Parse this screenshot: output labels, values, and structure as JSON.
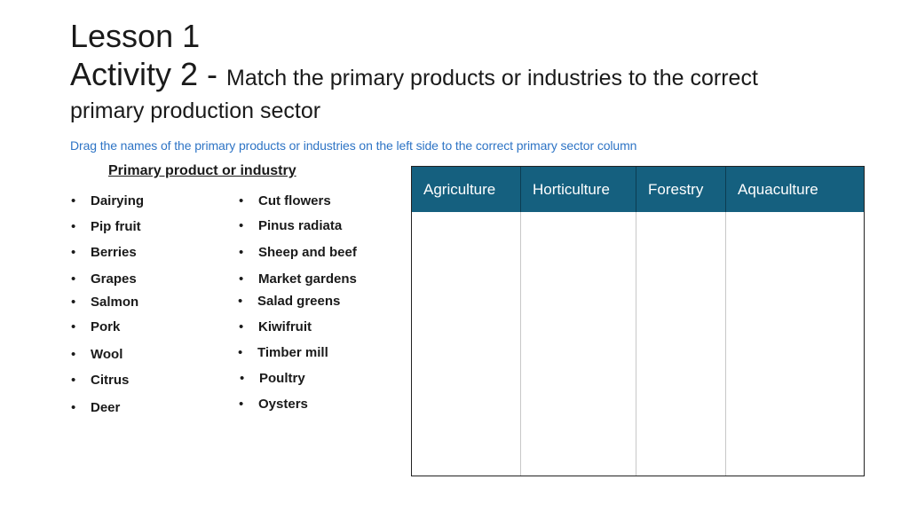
{
  "title": {
    "lesson": "Lesson 1",
    "activity_label": "Activity 2 - ",
    "activity_desc_line1": "Match the primary products or industries to the correct",
    "activity_desc_line2": "primary production sector"
  },
  "instruction": "Drag the names of the primary products or industries on the left side to the correct primary sector column",
  "list_heading": "Primary product or industry",
  "bullet": "•",
  "items_left": [
    "Dairying",
    "Pip fruit",
    "Berries",
    "Grapes",
    "Salmon",
    "Pork",
    "Wool",
    "Citrus",
    "Deer"
  ],
  "items_right": [
    "Cut flowers",
    "Pinus radiata",
    "Sheep and beef",
    "Market gardens",
    "Salad greens",
    "Kiwifruit",
    "Timber mill",
    "Poultry",
    "Oysters"
  ],
  "table": {
    "headers": [
      "Agriculture",
      "Horticulture",
      "Forestry",
      "Aquaculture"
    ]
  },
  "colors": {
    "header_bg": "#15607f",
    "instruction_text": "#2e74c5"
  }
}
